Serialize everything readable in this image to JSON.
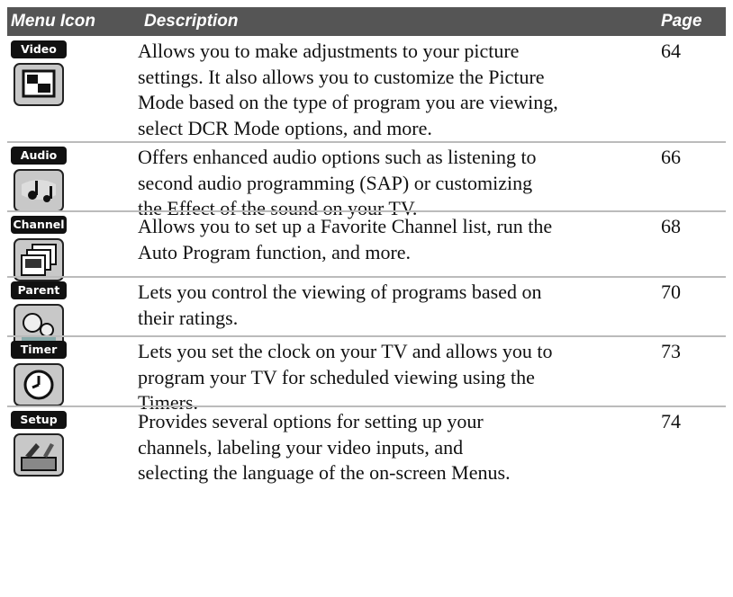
{
  "table": {
    "header": {
      "icon_col": "Menu Icon",
      "description_col": "Description",
      "page_col": "Page"
    },
    "rows": [
      {
        "icon_label": "Video",
        "description": [
          "Allows you to make adjustments to your picture",
          "settings. It also allows you to customize the Picture",
          "Mode based on the type of program you are viewing,",
          "select DCR Mode options, and more."
        ],
        "page": 64
      },
      {
        "icon_label": "Audio",
        "description": [
          "Offers enhanced audio options such as listening to",
          "second audio programming (SAP) or customizing",
          "the Effect of the sound on your TV."
        ],
        "page": 66
      },
      {
        "icon_label": "Channel",
        "description": [
          "Allows you to set up a Favorite Channel list, run the",
          "Auto Program function, and more."
        ],
        "page": 68
      },
      {
        "icon_label": "Parent",
        "description": [
          "Lets you control the viewing of programs based on",
          "their ratings."
        ],
        "page": 70
      },
      {
        "icon_label": "Timer",
        "description": [
          "Lets you set the clock on your TV and allows you to",
          "program your TV for scheduled viewing using the",
          "Timers."
        ],
        "page": 73
      },
      {
        "icon_label": "Setup",
        "description": [
          "Provides several options for setting up your",
          "channels, labeling your video inputs, and",
          "selecting the language of the on-screen Menus."
        ],
        "page": 74
      }
    ]
  }
}
